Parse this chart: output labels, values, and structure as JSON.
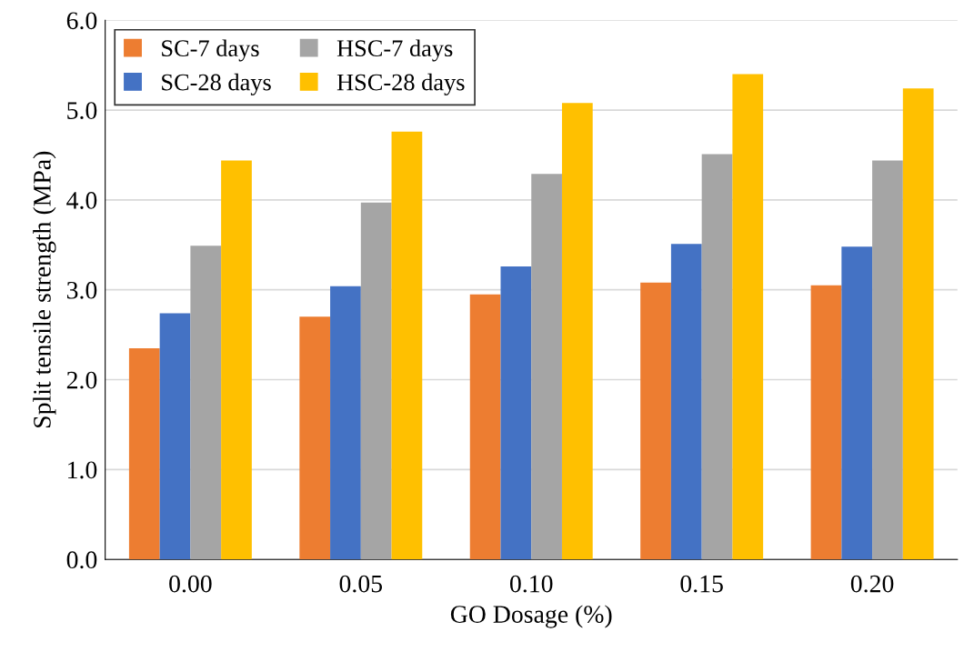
{
  "chart_data": {
    "type": "bar",
    "xlabel": "GO Dosage (%)",
    "ylabel": "Split tensile strength (MPa)",
    "categories": [
      "0.00",
      "0.05",
      "0.10",
      "0.15",
      "0.20"
    ],
    "series": [
      {
        "name": "SC-7 days",
        "color": "#ed7d31",
        "values": [
          2.35,
          2.7,
          2.95,
          3.08,
          3.05
        ]
      },
      {
        "name": "SC-28 days",
        "color": "#4472c4",
        "values": [
          2.74,
          3.04,
          3.26,
          3.51,
          3.48
        ]
      },
      {
        "name": "HSC-7 days",
        "color": "#a5a5a5",
        "values": [
          3.49,
          3.97,
          4.29,
          4.51,
          4.44
        ]
      },
      {
        "name": "HSC-28 days",
        "color": "#ffc000",
        "values": [
          4.44,
          4.76,
          5.08,
          5.4,
          5.24
        ]
      }
    ],
    "ylim": [
      0,
      6
    ],
    "yticks": [
      {
        "value": 0,
        "label": "0.0"
      },
      {
        "value": 1,
        "label": "1.0"
      },
      {
        "value": 2,
        "label": "2.0"
      },
      {
        "value": 3,
        "label": "3.0"
      },
      {
        "value": 4,
        "label": "4.0"
      },
      {
        "value": 5,
        "label": "5.0"
      },
      {
        "value": 6,
        "label": "6.0"
      }
    ],
    "grid": "y",
    "legend": "top left"
  }
}
